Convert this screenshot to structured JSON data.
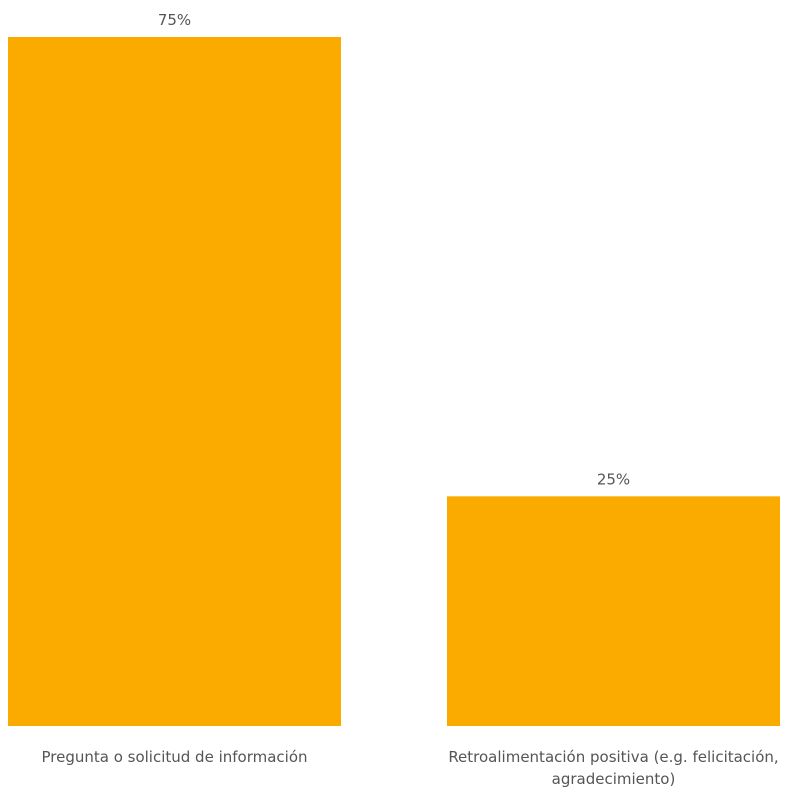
{
  "chart_data": {
    "type": "bar",
    "categories": [
      "Pregunta o solicitud de información",
      "Retroalimentación positiva (e.g. felicitación, agradecimiento)"
    ],
    "category_label_lines": [
      [
        "Pregunta o solicitud de información"
      ],
      [
        "Retroalimentación positiva (e.g. felicitación,",
        "agradecimiento)"
      ]
    ],
    "values": [
      75,
      25
    ],
    "value_labels": [
      "75%",
      "25%"
    ],
    "ylim": [
      0,
      75
    ],
    "grid": false,
    "legend": "none",
    "title": "",
    "xlabel": "",
    "ylabel": ""
  },
  "colors": {
    "bar": "#FBAA00",
    "label": "#555555",
    "background": "#FFFFFF"
  }
}
